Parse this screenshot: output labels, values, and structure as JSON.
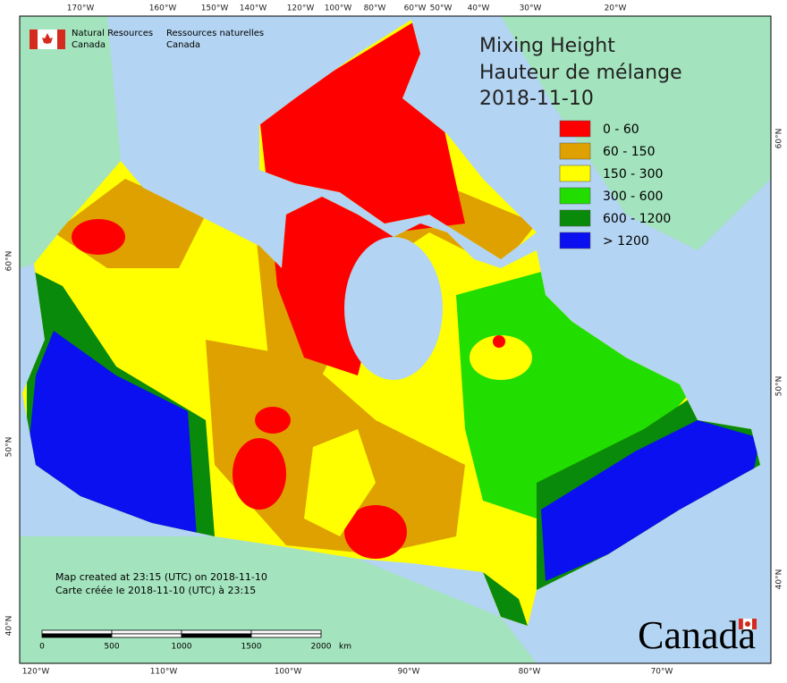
{
  "header": {
    "agency_en": [
      "Natural Resources",
      "Canada"
    ],
    "agency_fr": [
      "Ressources naturelles",
      "Canada"
    ]
  },
  "title": {
    "en": "Mixing Height",
    "fr": "Hauteur de mélange",
    "date": "2018-11-10"
  },
  "legend": [
    {
      "label": "0 - 60",
      "color": "#ff0000"
    },
    {
      "label": "60 - 150",
      "color": "#dea100"
    },
    {
      "label": "150 - 300",
      "color": "#ffff00"
    },
    {
      "label": "300 - 600",
      "color": "#22dd00"
    },
    {
      "label": "600 - 1200",
      "color": "#0a8a0a"
    },
    {
      "label": "> 1200",
      "color": "#0a10f0"
    }
  ],
  "notes": [
    "Map created at 23:15 (UTC) on 2018-11-10",
    "Carte créée le 2018-11-10 (UTC) à 23:15"
  ],
  "scale_bar": {
    "labels": [
      "0",
      "500",
      "1000",
      "1500",
      "2000"
    ],
    "unit": "km"
  },
  "top_labels": [
    "170°W",
    "160°W",
    "150°W",
    "140°W",
    "120°W",
    "100°W",
    "80°W",
    "60°W",
    "50°W",
    "40°W",
    "30°W",
    "20°W"
  ],
  "bottom_labels": [
    "120°W",
    "110°W",
    "100°W",
    "90°W",
    "80°W",
    "70°W"
  ],
  "left_labels": [
    "60°N",
    "50°N",
    "40°N"
  ],
  "right_labels": [
    "60°N",
    "50°N",
    "40°N"
  ],
  "wordmark": "Canada"
}
